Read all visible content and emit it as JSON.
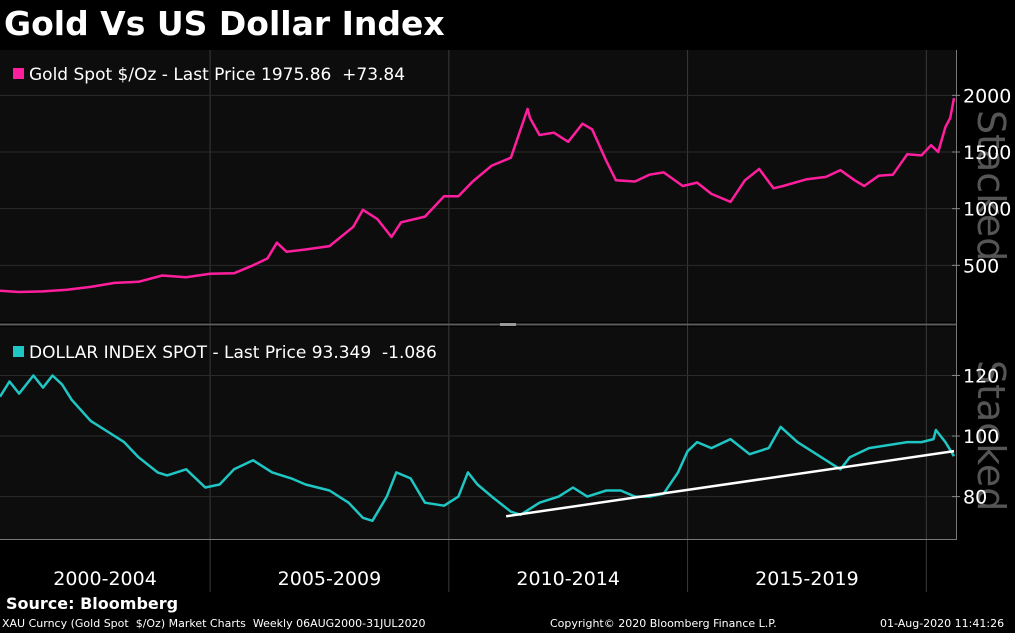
{
  "title": "Gold Vs US Dollar Index",
  "source": "Source: Bloomberg",
  "footer": {
    "left": "XAU Curncy (Gold Spot  $/Oz) Market Charts  Weekly 06AUG2000-31JUL2020",
    "center": "Copyright© 2020 Bloomberg Finance L.P.",
    "right": "01-Aug-2020 11:41:26"
  },
  "colors": {
    "background": "#000000",
    "plot_bg": "#0d0d0d",
    "gold": "#ff1f9e",
    "dollar": "#1fc7c4",
    "trendline": "#ffffff",
    "grid": "#3a3a3a"
  },
  "periods": [
    "2000-2004",
    "2005-2009",
    "2010-2014",
    "2015-2019"
  ],
  "chart_data": [
    {
      "type": "line",
      "panel": "top",
      "watermark": "Stacked",
      "legend": "Gold Spot $/Oz - Last Price 1975.86  +73.84",
      "x_range": [
        2000.6,
        2020.58
      ],
      "ylim": [
        0,
        2400
      ],
      "yticks": [
        500,
        1000,
        1500,
        2000
      ],
      "ytick_labels": [
        "500",
        "1000",
        "1500",
        "2000"
      ],
      "series": [
        {
          "x": [
            2000.6,
            2001.0,
            2001.5,
            2002.0,
            2002.5,
            2003.0,
            2003.5,
            2004.0,
            2004.5,
            2005.0,
            2005.5,
            2005.9,
            2006.2,
            2006.4,
            2006.6,
            2007.0,
            2007.5,
            2008.0,
            2008.2,
            2008.5,
            2008.8,
            2009.0,
            2009.5,
            2009.9,
            2010.2,
            2010.5,
            2010.9,
            2011.3,
            2011.65,
            2011.7,
            2011.9,
            2012.2,
            2012.5,
            2012.8,
            2013.0,
            2013.3,
            2013.5,
            2013.9,
            2014.2,
            2014.5,
            2014.9,
            2015.2,
            2015.5,
            2015.9,
            2016.2,
            2016.5,
            2016.8,
            2017.0,
            2017.5,
            2017.9,
            2018.2,
            2018.5,
            2018.7,
            2019.0,
            2019.3,
            2019.6,
            2019.9,
            2020.1,
            2020.25,
            2020.4,
            2020.5,
            2020.58
          ],
          "values": [
            275,
            265,
            270,
            285,
            310,
            345,
            355,
            410,
            395,
            425,
            430,
            500,
            560,
            700,
            620,
            640,
            670,
            840,
            990,
            910,
            750,
            880,
            930,
            1110,
            1110,
            1240,
            1380,
            1450,
            1880,
            1800,
            1650,
            1670,
            1590,
            1750,
            1700,
            1420,
            1250,
            1240,
            1300,
            1320,
            1200,
            1230,
            1130,
            1060,
            1250,
            1350,
            1180,
            1200,
            1260,
            1280,
            1340,
            1250,
            1200,
            1290,
            1300,
            1480,
            1470,
            1560,
            1500,
            1720,
            1800,
            1976
          ]
        }
      ]
    },
    {
      "type": "line",
      "panel": "bottom",
      "watermark": "Stacked",
      "legend": "DOLLAR INDEX SPOT - Last Price 93.349  -1.086",
      "x_range": [
        2000.6,
        2020.58
      ],
      "ylim": [
        66,
        136
      ],
      "yticks": [
        80,
        100,
        120
      ],
      "ytick_labels": [
        "80",
        "100",
        "120"
      ],
      "series": [
        {
          "x": [
            2000.6,
            2000.8,
            2001.0,
            2001.3,
            2001.5,
            2001.7,
            2001.9,
            2002.1,
            2002.5,
            2002.9,
            2003.2,
            2003.5,
            2003.9,
            2004.1,
            2004.5,
            2004.9,
            2005.2,
            2005.5,
            2005.9,
            2006.3,
            2006.7,
            2007.0,
            2007.5,
            2007.9,
            2008.2,
            2008.4,
            2008.7,
            2008.9,
            2009.2,
            2009.5,
            2009.9,
            2010.2,
            2010.4,
            2010.6,
            2010.9,
            2011.3,
            2011.5,
            2011.9,
            2012.3,
            2012.6,
            2012.9,
            2013.3,
            2013.6,
            2013.9,
            2014.2,
            2014.5,
            2014.8,
            2015.0,
            2015.2,
            2015.5,
            2015.9,
            2016.3,
            2016.7,
            2016.95,
            2017.3,
            2017.7,
            2018.0,
            2018.2,
            2018.4,
            2018.8,
            2019.2,
            2019.6,
            2019.9,
            2020.15,
            2020.2,
            2020.4,
            2020.58
          ],
          "values": [
            113,
            118,
            114,
            120,
            116,
            120,
            117,
            112,
            105,
            101,
            98,
            93,
            88,
            87,
            89,
            83,
            84,
            89,
            92,
            88,
            86,
            84,
            82,
            78,
            73,
            72,
            80,
            88,
            86,
            78,
            77,
            80,
            88,
            84,
            80,
            75,
            74,
            78,
            80,
            83,
            80,
            82,
            82,
            80,
            80,
            81,
            88,
            95,
            98,
            96,
            99,
            94,
            96,
            103,
            98,
            94,
            91,
            89,
            93,
            96,
            97,
            98,
            98,
            99,
            102,
            98,
            93.349
          ]
        }
      ],
      "trendline": {
        "x": [
          2011.2,
          2020.58
        ],
        "values": [
          73.5,
          95
        ]
      }
    }
  ]
}
